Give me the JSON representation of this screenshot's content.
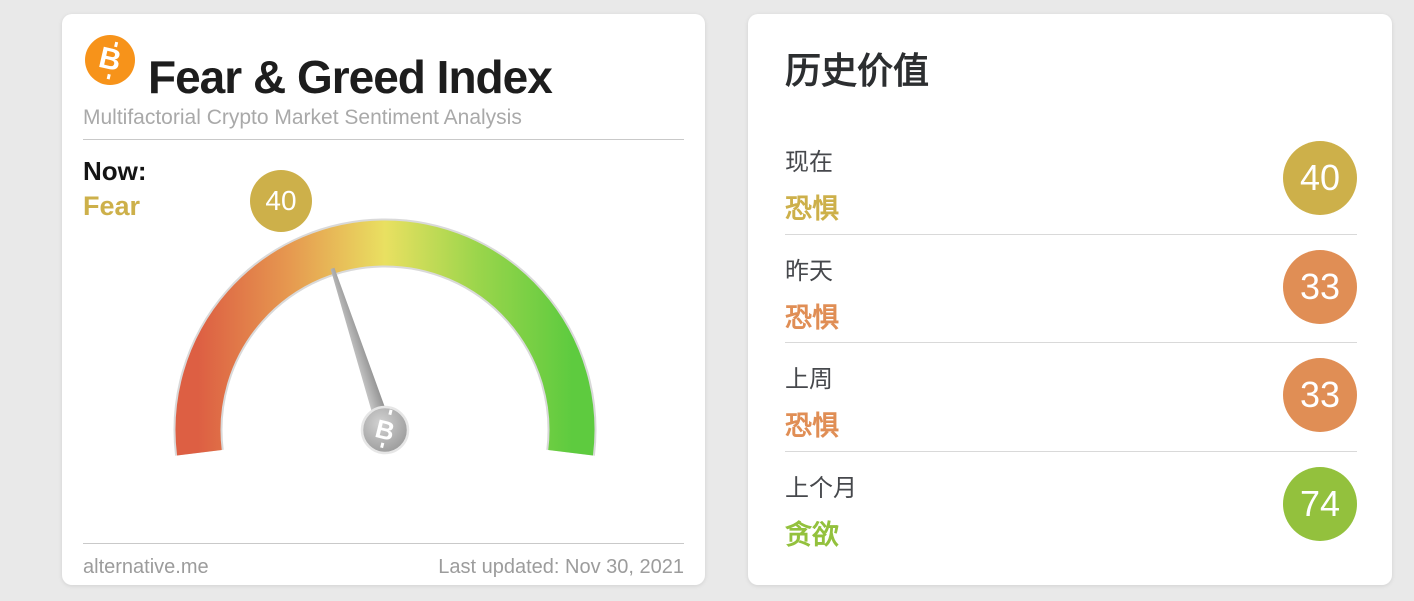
{
  "app": {
    "background_color": "#e9e9e9"
  },
  "fgi_card": {
    "header": {
      "bitcoin_icon_color": "#f7931a",
      "title": "Fear & Greed Index",
      "subtitle": "Multifactorial Crypto Market Sentiment Analysis"
    },
    "now": {
      "label": "Now:",
      "classification": "Fear",
      "value": "40"
    },
    "footer": {
      "source": "alternative.me",
      "last_updated": "Last updated: Nov 30, 2021"
    }
  },
  "history_card": {
    "title": "历史价值",
    "rows": [
      {
        "period": "现在",
        "classification": "恐惧",
        "value": "40",
        "color": "#cdb04a"
      },
      {
        "period": "昨天",
        "classification": "恐惧",
        "value": "33",
        "color": "#e08e55"
      },
      {
        "period": "上周",
        "classification": "恐惧",
        "value": "33",
        "color": "#e08e55"
      },
      {
        "period": "上个月",
        "classification": "贪欲",
        "value": "74",
        "color": "#93c13d"
      }
    ]
  },
  "chart_data": {
    "type": "gauge",
    "title": "Fear & Greed Index",
    "value": 40,
    "min": 0,
    "max": 100,
    "classification": "Fear",
    "classification_color": "#cdb04a",
    "scale_colors": [
      "#dd5f43",
      "#e69a50",
      "#e9e061",
      "#9ad54b",
      "#5ecb3f"
    ],
    "needle_color": "#a6a6a6",
    "history": [
      {
        "period": "现在",
        "classification": "恐惧",
        "value": 40
      },
      {
        "period": "昨天",
        "classification": "恐惧",
        "value": 33
      },
      {
        "period": "上周",
        "classification": "恐惧",
        "value": 33
      },
      {
        "period": "上个月",
        "classification": "贪欲",
        "value": 74
      }
    ]
  }
}
